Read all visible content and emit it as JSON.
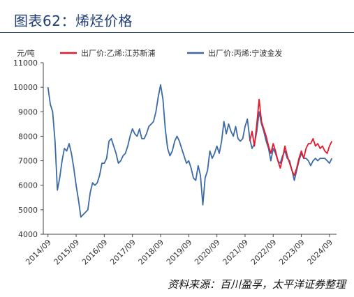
{
  "header": {
    "title": "图表62：烯烃价格"
  },
  "footer": {
    "source": "资料来源：百川盈孚，太平洋证券整理"
  },
  "chart_data": {
    "type": "line",
    "ylabel": "元/吨",
    "ylim": [
      4000,
      11000
    ],
    "yticks": [
      4000,
      5000,
      6000,
      7000,
      8000,
      9000,
      10000,
      11000
    ],
    "xticks": [
      "2014/09",
      "2015/09",
      "2016/09",
      "2017/09",
      "2018/09",
      "2019/09",
      "2020/09",
      "2021/09",
      "2022/09",
      "2023/09",
      "2024/09"
    ],
    "legend_position": "top",
    "grid": false,
    "series": [
      {
        "name": "出厂价:乙烯:江苏新浦",
        "color": "#e8192c",
        "points": [
          [
            "2021/11",
            7800
          ],
          [
            "2021/12",
            8200
          ],
          [
            "2022/01",
            7600
          ],
          [
            "2022/02",
            8500
          ],
          [
            "2022/03",
            9500
          ],
          [
            "2022/04",
            8600
          ],
          [
            "2022/05",
            8300
          ],
          [
            "2022/06",
            8000
          ],
          [
            "2022/07",
            7600
          ],
          [
            "2022/08",
            7300
          ],
          [
            "2022/09",
            7700
          ],
          [
            "2022/10",
            7400
          ],
          [
            "2022/11",
            7000
          ],
          [
            "2022/12",
            6700
          ],
          [
            "2023/01",
            7100
          ],
          [
            "2023/02",
            7600
          ],
          [
            "2023/03",
            7200
          ],
          [
            "2023/04",
            6900
          ],
          [
            "2023/05",
            6600
          ],
          [
            "2023/06",
            6400
          ],
          [
            "2023/07",
            6700
          ],
          [
            "2023/08",
            7100
          ],
          [
            "2023/09",
            7400
          ],
          [
            "2023/10",
            7100
          ],
          [
            "2023/11",
            7500
          ],
          [
            "2023/12",
            7700
          ],
          [
            "2024/01",
            7700
          ],
          [
            "2024/02",
            7900
          ],
          [
            "2024/03",
            7600
          ],
          [
            "2024/04",
            7700
          ],
          [
            "2024/05",
            7500
          ],
          [
            "2024/06",
            7600
          ],
          [
            "2024/07",
            7400
          ],
          [
            "2024/08",
            7300
          ],
          [
            "2024/09",
            7600
          ],
          [
            "2024/10",
            7800
          ]
        ]
      },
      {
        "name": "出厂价:丙烯:宁波金发",
        "color": "#3b6aa6",
        "points": [
          [
            "2014/09",
            10000
          ],
          [
            "2014/10",
            9300
          ],
          [
            "2014/11",
            9000
          ],
          [
            "2014/12",
            7800
          ],
          [
            "2015/01",
            5800
          ],
          [
            "2015/02",
            6300
          ],
          [
            "2015/03",
            7000
          ],
          [
            "2015/04",
            7500
          ],
          [
            "2015/05",
            7400
          ],
          [
            "2015/06",
            7700
          ],
          [
            "2015/07",
            7300
          ],
          [
            "2015/08",
            6700
          ],
          [
            "2015/09",
            6000
          ],
          [
            "2015/10",
            5400
          ],
          [
            "2015/11",
            4700
          ],
          [
            "2015/12",
            4800
          ],
          [
            "2016/01",
            4900
          ],
          [
            "2016/02",
            5000
          ],
          [
            "2016/03",
            5700
          ],
          [
            "2016/04",
            6100
          ],
          [
            "2016/05",
            6000
          ],
          [
            "2016/06",
            6100
          ],
          [
            "2016/07",
            6400
          ],
          [
            "2016/08",
            6900
          ],
          [
            "2016/09",
            6900
          ],
          [
            "2016/10",
            7100
          ],
          [
            "2016/11",
            7800
          ],
          [
            "2016/12",
            7900
          ],
          [
            "2017/01",
            7600
          ],
          [
            "2017/02",
            7300
          ],
          [
            "2017/03",
            6900
          ],
          [
            "2017/04",
            7000
          ],
          [
            "2017/05",
            7200
          ],
          [
            "2017/06",
            7300
          ],
          [
            "2017/07",
            7600
          ],
          [
            "2017/08",
            8000
          ],
          [
            "2017/09",
            8300
          ],
          [
            "2017/10",
            8100
          ],
          [
            "2017/11",
            8000
          ],
          [
            "2017/12",
            8300
          ],
          [
            "2018/01",
            7900
          ],
          [
            "2018/02",
            7900
          ],
          [
            "2018/03",
            8100
          ],
          [
            "2018/04",
            8400
          ],
          [
            "2018/05",
            8500
          ],
          [
            "2018/06",
            8600
          ],
          [
            "2018/07",
            9000
          ],
          [
            "2018/08",
            9600
          ],
          [
            "2018/09",
            10100
          ],
          [
            "2018/10",
            9500
          ],
          [
            "2018/11",
            8300
          ],
          [
            "2018/12",
            7500
          ],
          [
            "2019/01",
            7200
          ],
          [
            "2019/02",
            7400
          ],
          [
            "2019/03",
            7800
          ],
          [
            "2019/04",
            8000
          ],
          [
            "2019/05",
            7800
          ],
          [
            "2019/06",
            7500
          ],
          [
            "2019/07",
            7200
          ],
          [
            "2019/08",
            6900
          ],
          [
            "2019/09",
            7000
          ],
          [
            "2019/10",
            6700
          ],
          [
            "2019/11",
            6300
          ],
          [
            "2019/12",
            6200
          ],
          [
            "2020/01",
            6800
          ],
          [
            "2020/02",
            6400
          ],
          [
            "2020/03",
            5200
          ],
          [
            "2020/04",
            6300
          ],
          [
            "2020/05",
            6600
          ],
          [
            "2020/06",
            7400
          ],
          [
            "2020/07",
            7100
          ],
          [
            "2020/08",
            7300
          ],
          [
            "2020/09",
            7600
          ],
          [
            "2020/10",
            7300
          ],
          [
            "2020/11",
            7800
          ],
          [
            "2020/12",
            8600
          ],
          [
            "2021/01",
            8100
          ],
          [
            "2021/02",
            8500
          ],
          [
            "2021/03",
            8200
          ],
          [
            "2021/04",
            8000
          ],
          [
            "2021/05",
            8400
          ],
          [
            "2021/06",
            7900
          ],
          [
            "2021/07",
            7800
          ],
          [
            "2021/08",
            7900
          ],
          [
            "2021/09",
            8400
          ],
          [
            "2021/10",
            8700
          ],
          [
            "2021/11",
            7900
          ],
          [
            "2021/12",
            7500
          ],
          [
            "2022/01",
            7700
          ],
          [
            "2022/02",
            8200
          ],
          [
            "2022/03",
            9000
          ],
          [
            "2022/04",
            8500
          ],
          [
            "2022/05",
            8200
          ],
          [
            "2022/06",
            7800
          ],
          [
            "2022/07",
            7500
          ],
          [
            "2022/08",
            7000
          ],
          [
            "2022/09",
            7500
          ],
          [
            "2022/10",
            7300
          ],
          [
            "2022/11",
            7000
          ],
          [
            "2022/12",
            6900
          ],
          [
            "2023/01",
            7200
          ],
          [
            "2023/02",
            7400
          ],
          [
            "2023/03",
            7100
          ],
          [
            "2023/04",
            7000
          ],
          [
            "2023/05",
            6600
          ],
          [
            "2023/06",
            6200
          ],
          [
            "2023/07",
            6600
          ],
          [
            "2023/08",
            7000
          ],
          [
            "2023/09",
            7300
          ],
          [
            "2023/10",
            7100
          ],
          [
            "2023/11",
            7100
          ],
          [
            "2023/12",
            7000
          ],
          [
            "2024/01",
            6800
          ],
          [
            "2024/02",
            7000
          ],
          [
            "2024/03",
            7100
          ],
          [
            "2024/04",
            7000
          ],
          [
            "2024/05",
            7100
          ],
          [
            "2024/06",
            7100
          ],
          [
            "2024/07",
            7100
          ],
          [
            "2024/08",
            7000
          ],
          [
            "2024/09",
            6900
          ],
          [
            "2024/10",
            7100
          ]
        ]
      }
    ]
  }
}
